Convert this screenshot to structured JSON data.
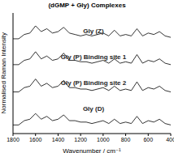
{
  "chart_data": {
    "type": "line",
    "title": "(dGMP + Gly) Complexes",
    "x_label": "Wavenumber / cm⁻¹",
    "y_label": "Normalised Raman Intensity",
    "x": [
      1800,
      1750,
      1700,
      1650,
      1600,
      1550,
      1500,
      1450,
      1400,
      1350,
      1300,
      1250,
      1200,
      1150,
      1100,
      1050,
      1000,
      950,
      900,
      850,
      800,
      750,
      700,
      650,
      600,
      550,
      500,
      450,
      400
    ],
    "xlim": [
      1800,
      400
    ],
    "xticks": [
      1800,
      1600,
      1400,
      1200,
      1000,
      800,
      600,
      400
    ],
    "ylim": [
      0,
      4.2
    ],
    "tick_labels": "x",
    "series": [
      {
        "name": "Gly (Z)",
        "color": "#000000",
        "values": [
          3.3,
          3.3,
          3.45,
          3.5,
          3.75,
          3.55,
          3.65,
          3.5,
          3.55,
          3.7,
          3.5,
          3.45,
          3.4,
          3.45,
          3.4,
          3.45,
          3.5,
          3.4,
          3.6,
          3.4,
          3.45,
          3.4,
          3.65,
          3.4,
          3.5,
          3.45,
          3.55,
          3.4,
          3.35
        ]
      },
      {
        "name": "Gly (P) Binding site 1",
        "color": "#000000",
        "values": [
          2.4,
          2.4,
          2.55,
          2.6,
          2.85,
          2.6,
          2.7,
          2.55,
          2.6,
          2.8,
          2.55,
          2.55,
          2.5,
          2.5,
          2.45,
          2.5,
          2.55,
          2.45,
          2.6,
          2.45,
          2.5,
          2.45,
          2.75,
          2.45,
          2.55,
          2.5,
          2.6,
          2.45,
          2.4
        ]
      },
      {
        "name": "Gly (P) Binding site 2",
        "color": "#000000",
        "values": [
          1.45,
          1.45,
          1.6,
          1.65,
          1.9,
          1.65,
          1.75,
          1.6,
          1.65,
          1.85,
          1.6,
          1.6,
          1.55,
          1.55,
          1.5,
          1.55,
          1.6,
          1.5,
          1.65,
          1.5,
          1.55,
          1.5,
          1.8,
          1.5,
          1.6,
          1.55,
          1.65,
          1.5,
          1.45
        ]
      },
      {
        "name": "Gly (D)",
        "color": "#000000",
        "values": [
          0.3,
          0.3,
          0.45,
          0.5,
          0.7,
          0.5,
          0.6,
          0.45,
          0.5,
          0.65,
          0.45,
          0.45,
          0.4,
          0.4,
          0.35,
          0.4,
          0.45,
          0.35,
          0.5,
          0.35,
          0.4,
          0.35,
          0.6,
          0.35,
          0.45,
          0.4,
          0.5,
          0.35,
          0.3
        ]
      }
    ]
  }
}
